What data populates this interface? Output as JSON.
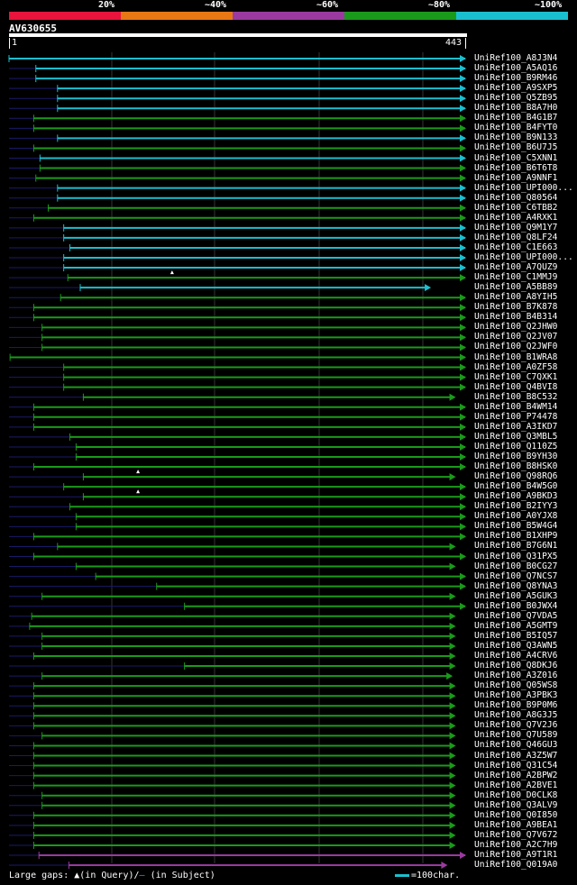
{
  "legend": {
    "colors": [
      "#e8143c",
      "#e87814",
      "#9a3aa0",
      "#1a9a1a",
      "#1abfcf"
    ],
    "labels": [
      "20%",
      "~40%",
      "~60%",
      "~80%",
      "~100%"
    ]
  },
  "query": {
    "name": "AV630655",
    "start": "1",
    "end": "443",
    "length": 443
  },
  "footer": {
    "large_gaps": "Large gaps: ",
    "query_gap": "(in Query)/",
    "subject_gap": " (in Subject)",
    "scale_text": "=100char."
  },
  "hits": [
    {
      "name": "UniRef100_A8J3N4",
      "start": 1,
      "color": "#1abfcf",
      "arrow": false,
      "marks": []
    },
    {
      "name": "UniRef100_A5AQ16",
      "start": 27,
      "color": "#1abfcf",
      "arrow": false,
      "marks": []
    },
    {
      "name": "UniRef100_B9RM46",
      "start": 27,
      "color": "#1abfcf",
      "arrow": false,
      "marks": []
    },
    {
      "name": "UniRef100_A9SXP5",
      "start": 48,
      "color": "#1abfcf",
      "arrow": false,
      "marks": []
    },
    {
      "name": "UniRef100_Q5ZB95",
      "start": 48,
      "color": "#1abfcf",
      "arrow": false,
      "marks": []
    },
    {
      "name": "UniRef100_B8A7H0",
      "start": 48,
      "color": "#1abfcf",
      "arrow": false,
      "marks": []
    },
    {
      "name": "UniRef100_B4G1B7",
      "start": 25,
      "color": "#1a9a1a",
      "arrow": false,
      "marks": []
    },
    {
      "name": "UniRef100_B4FYT0",
      "start": 25,
      "color": "#1a9a1a",
      "arrow": false,
      "marks": []
    },
    {
      "name": "UniRef100_B9N133",
      "start": 48,
      "color": "#1abfcf",
      "arrow": false,
      "marks": []
    },
    {
      "name": "UniRef100_B6U7J5",
      "start": 25,
      "color": "#1a9a1a",
      "arrow": false,
      "marks": []
    },
    {
      "name": "UniRef100_C5XNN1",
      "start": 31,
      "color": "#1abfcf",
      "arrow": false,
      "marks": []
    },
    {
      "name": "UniRef100_B6T6T8",
      "start": 31,
      "color": "#1a9a1a",
      "arrow": false,
      "marks": []
    },
    {
      "name": "UniRef100_A9NNF1",
      "start": 27,
      "color": "#1a9a1a",
      "arrow": false,
      "marks": []
    },
    {
      "name": "UniRef100_UPI000...",
      "start": 48,
      "color": "#1abfcf",
      "arrow": false,
      "marks": []
    },
    {
      "name": "UniRef100_Q80564",
      "start": 48,
      "color": "#1abfcf",
      "arrow": false,
      "marks": []
    },
    {
      "name": "UniRef100_C6TBB2",
      "start": 39,
      "color": "#1a9a1a",
      "arrow": false,
      "marks": []
    },
    {
      "name": "UniRef100_A4RXK1",
      "start": 25,
      "color": "#1a9a1a",
      "arrow": false,
      "marks": []
    },
    {
      "name": "UniRef100_Q9M1Y7",
      "start": 54,
      "color": "#1abfcf",
      "arrow": false,
      "marks": []
    },
    {
      "name": "UniRef100_Q8LF24",
      "start": 54,
      "color": "#1abfcf",
      "arrow": false,
      "marks": []
    },
    {
      "name": "UniRef100_C1E663",
      "start": 60,
      "color": "#1abfcf",
      "arrow": false,
      "marks": []
    },
    {
      "name": "UniRef100_UPI000...",
      "start": 54,
      "color": "#1abfcf",
      "arrow": false,
      "marks": []
    },
    {
      "name": "UniRef100_A7QUZ9",
      "start": 54,
      "color": "#1abfcf",
      "arrow": false,
      "marks": []
    },
    {
      "name": "UniRef100_C1MMJ9",
      "start": 58,
      "color": "#1a9a1a",
      "arrow": false,
      "marks": [
        159
      ]
    },
    {
      "name": "UniRef100_A5BB89",
      "start": 70,
      "end": 409,
      "color": "#1abfcf",
      "arrow": true,
      "marks": []
    },
    {
      "name": "UniRef100_A8YIH5",
      "start": 51,
      "color": "#1a9a1a",
      "arrow": false,
      "marks": []
    },
    {
      "name": "UniRef100_B7K878",
      "start": 25,
      "color": "#1a9a1a",
      "arrow": false,
      "marks": []
    },
    {
      "name": "UniRef100_B4B314",
      "start": 25,
      "color": "#1a9a1a",
      "arrow": false,
      "marks": []
    },
    {
      "name": "UniRef100_Q2JHW0",
      "start": 33,
      "color": "#1a9a1a",
      "arrow": false,
      "marks": []
    },
    {
      "name": "UniRef100_Q2JV07",
      "start": 33,
      "color": "#1a9a1a",
      "arrow": false,
      "marks": []
    },
    {
      "name": "UniRef100_Q2JWF0",
      "start": 33,
      "color": "#1a9a1a",
      "arrow": false,
      "marks": []
    },
    {
      "name": "UniRef100_B1WRA8",
      "start": 2,
      "color": "#1a9a1a",
      "arrow": false,
      "marks": []
    },
    {
      "name": "UniRef100_A0ZF58",
      "start": 54,
      "color": "#1a9a1a",
      "arrow": false,
      "marks": []
    },
    {
      "name": "UniRef100_C7QXK1",
      "start": 54,
      "color": "#1a9a1a",
      "arrow": false,
      "marks": []
    },
    {
      "name": "UniRef100_Q4BVI8",
      "start": 54,
      "color": "#1a9a1a",
      "arrow": false,
      "marks": []
    },
    {
      "name": "UniRef100_B8C532",
      "start": 73,
      "end": 433,
      "color": "#1a9a1a",
      "arrow": true,
      "marks": []
    },
    {
      "name": "UniRef100_B4WM14",
      "start": 25,
      "color": "#1a9a1a",
      "arrow": false,
      "marks": []
    },
    {
      "name": "UniRef100_P74478",
      "start": 25,
      "color": "#1a9a1a",
      "arrow": false,
      "marks": []
    },
    {
      "name": "UniRef100_A3IKD7",
      "start": 25,
      "color": "#1a9a1a",
      "arrow": false,
      "marks": []
    },
    {
      "name": "UniRef100_Q3MBL5",
      "start": 60,
      "color": "#1a9a1a",
      "arrow": false,
      "marks": []
    },
    {
      "name": "UniRef100_Q110Z5",
      "start": 66,
      "color": "#1a9a1a",
      "arrow": false,
      "marks": []
    },
    {
      "name": "UniRef100_B9YH30",
      "start": 66,
      "color": "#1a9a1a",
      "arrow": false,
      "marks": []
    },
    {
      "name": "UniRef100_B8HSK0",
      "start": 25,
      "color": "#1a9a1a",
      "arrow": false,
      "marks": []
    },
    {
      "name": "UniRef100_Q98RQ6",
      "start": 73,
      "end": 433,
      "color": "#1a9a1a",
      "arrow": true,
      "marks": [
        126
      ]
    },
    {
      "name": "UniRef100_B4W5G0",
      "start": 54,
      "color": "#1a9a1a",
      "arrow": false,
      "marks": []
    },
    {
      "name": "UniRef100_A9BKD3",
      "start": 73,
      "color": "#1a9a1a",
      "arrow": false,
      "marks": [
        126
      ]
    },
    {
      "name": "UniRef100_B2IYY3",
      "start": 60,
      "color": "#1a9a1a",
      "arrow": false,
      "marks": []
    },
    {
      "name": "UniRef100_A0YJX8",
      "start": 66,
      "color": "#1a9a1a",
      "arrow": false,
      "marks": []
    },
    {
      "name": "UniRef100_B5W4G4",
      "start": 66,
      "color": "#1a9a1a",
      "arrow": false,
      "marks": []
    },
    {
      "name": "UniRef100_B1XHP9",
      "start": 25,
      "color": "#1a9a1a",
      "arrow": false,
      "marks": []
    },
    {
      "name": "UniRef100_B7G6N1",
      "start": 48,
      "end": 433,
      "color": "#1a9a1a",
      "arrow": true,
      "marks": []
    },
    {
      "name": "UniRef100_Q31PX5",
      "start": 25,
      "color": "#1a9a1a",
      "arrow": false,
      "marks": []
    },
    {
      "name": "UniRef100_B0CG27",
      "start": 66,
      "end": 433,
      "color": "#1a9a1a",
      "arrow": true,
      "marks": []
    },
    {
      "name": "UniRef100_Q7NCS7",
      "start": 85,
      "color": "#1a9a1a",
      "arrow": false,
      "marks": []
    },
    {
      "name": "UniRef100_Q8YNA3",
      "start": 144,
      "color": "#1a9a1a",
      "arrow": false,
      "marks": []
    },
    {
      "name": "UniRef100_A5GUK3",
      "start": 33,
      "end": 433,
      "color": "#1a9a1a",
      "arrow": true,
      "marks": []
    },
    {
      "name": "UniRef100_B0JWX4",
      "start": 171,
      "color": "#1a9a1a",
      "arrow": false,
      "marks": []
    },
    {
      "name": "UniRef100_Q7VDA5",
      "start": 23,
      "end": 433,
      "color": "#1a9a1a",
      "arrow": true,
      "marks": []
    },
    {
      "name": "UniRef100_A5GMT9",
      "start": 21,
      "end": 433,
      "color": "#1a9a1a",
      "arrow": true,
      "marks": []
    },
    {
      "name": "UniRef100_B5IQ57",
      "start": 33,
      "end": 433,
      "color": "#1a9a1a",
      "arrow": true,
      "marks": []
    },
    {
      "name": "UniRef100_Q3AWN5",
      "start": 33,
      "end": 433,
      "color": "#1a9a1a",
      "arrow": true,
      "marks": []
    },
    {
      "name": "UniRef100_A4CRV6",
      "start": 25,
      "end": 433,
      "color": "#1a9a1a",
      "arrow": true,
      "marks": []
    },
    {
      "name": "UniRef100_Q8DKJ6",
      "start": 171,
      "end": 433,
      "color": "#1a9a1a",
      "arrow": true,
      "marks": []
    },
    {
      "name": "UniRef100_A3Z016",
      "start": 33,
      "end": 430,
      "color": "#1a9a1a",
      "arrow": true,
      "marks": []
    },
    {
      "name": "UniRef100_Q05WS8",
      "start": 25,
      "end": 433,
      "color": "#1a9a1a",
      "arrow": true,
      "marks": []
    },
    {
      "name": "UniRef100_A3PBK3",
      "start": 25,
      "end": 433,
      "color": "#1a9a1a",
      "arrow": true,
      "marks": []
    },
    {
      "name": "UniRef100_B9P0M6",
      "start": 25,
      "end": 433,
      "color": "#1a9a1a",
      "arrow": true,
      "marks": []
    },
    {
      "name": "UniRef100_A8G3J5",
      "start": 25,
      "end": 433,
      "color": "#1a9a1a",
      "arrow": true,
      "marks": []
    },
    {
      "name": "UniRef100_Q7V2J6",
      "start": 25,
      "end": 433,
      "color": "#1a9a1a",
      "arrow": true,
      "marks": []
    },
    {
      "name": "UniRef100_Q7U589",
      "start": 33,
      "end": 433,
      "color": "#1a9a1a",
      "arrow": true,
      "marks": []
    },
    {
      "name": "UniRef100_Q46GU3",
      "start": 25,
      "end": 433,
      "color": "#1a9a1a",
      "arrow": true,
      "marks": []
    },
    {
      "name": "UniRef100_A3Z5W7",
      "start": 25,
      "end": 433,
      "color": "#1a9a1a",
      "arrow": true,
      "marks": []
    },
    {
      "name": "UniRef100_Q31C54",
      "start": 25,
      "end": 433,
      "color": "#1a9a1a",
      "arrow": true,
      "marks": []
    },
    {
      "name": "UniRef100_A2BPW2",
      "start": 25,
      "end": 433,
      "color": "#1a9a1a",
      "arrow": true,
      "marks": []
    },
    {
      "name": "UniRef100_A2BVE1",
      "start": 25,
      "end": 433,
      "color": "#1a9a1a",
      "arrow": true,
      "marks": []
    },
    {
      "name": "UniRef100_D0CLK8",
      "start": 33,
      "end": 433,
      "color": "#1a9a1a",
      "arrow": true,
      "marks": []
    },
    {
      "name": "UniRef100_Q3ALV9",
      "start": 33,
      "end": 433,
      "color": "#1a9a1a",
      "arrow": true,
      "marks": []
    },
    {
      "name": "UniRef100_Q0I850",
      "start": 25,
      "end": 433,
      "color": "#1a9a1a",
      "arrow": true,
      "marks": []
    },
    {
      "name": "UniRef100_A9BEA1",
      "start": 25,
      "end": 433,
      "color": "#1a9a1a",
      "arrow": true,
      "marks": []
    },
    {
      "name": "UniRef100_Q7V672",
      "start": 25,
      "end": 433,
      "color": "#1a9a1a",
      "arrow": true,
      "marks": []
    },
    {
      "name": "UniRef100_A2C7H9",
      "start": 25,
      "end": 433,
      "color": "#1a9a1a",
      "arrow": true,
      "marks": []
    },
    {
      "name": "UniRef100_A9T1R1",
      "start": 30,
      "color": "#9a3aa0",
      "arrow": false,
      "marks": []
    },
    {
      "name": "UniRef100_Q019A0",
      "start": 59,
      "end": 425,
      "color": "#9a3aa0",
      "arrow": true,
      "marks": []
    }
  ]
}
